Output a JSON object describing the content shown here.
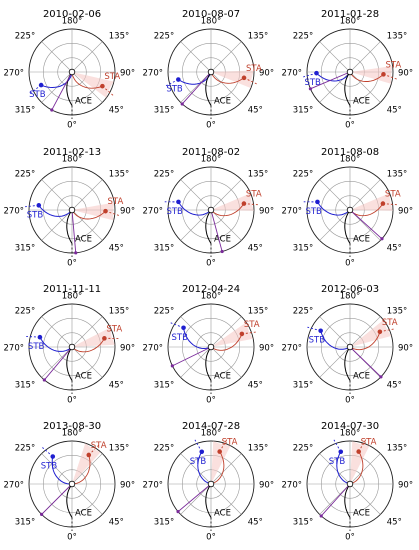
{
  "chart_data": {
    "type": "polar",
    "description_of_layout": "grid",
    "angle_labels": [
      "180°",
      "135°",
      "90°",
      "45°",
      "0°",
      "315°",
      "270°",
      "225°"
    ],
    "angle_values": [
      180,
      135,
      90,
      45,
      0,
      315,
      270,
      225
    ],
    "spacecraft_labels": [
      "STA",
      "STB",
      "ACE"
    ],
    "colors": {
      "STA": "#c0402c",
      "STB": "#1f1fd0",
      "ACE": "#000000",
      "event": "#7a2a9a",
      "grid": "#9a9a9a"
    },
    "panels": [
      {
        "date": "2010-02-06",
        "sta_deg": 65,
        "stb_deg": 293,
        "event_deg": 332,
        "ace_label": true,
        "label_pos": "right"
      },
      {
        "date": "2010-08-07",
        "sta_deg": 80,
        "stb_deg": 283,
        "event_deg": 318,
        "ace_label": true,
        "label_pos": "right"
      },
      {
        "date": "2011-01-28",
        "sta_deg": 86,
        "stb_deg": 272,
        "event_deg": 293,
        "ace_label": true,
        "label_pos": "right"
      },
      {
        "date": "2011-02-13",
        "sta_deg": 88,
        "stb_deg": 262,
        "event_deg": 5,
        "ace_label": true,
        "label_pos": "right"
      },
      {
        "date": "2011-08-02",
        "sta_deg": 101,
        "stb_deg": 256,
        "event_deg": 15,
        "ace_label": true,
        "label_pos": "right"
      },
      {
        "date": "2011-08-08",
        "sta_deg": 101,
        "stb_deg": 256,
        "event_deg": 48,
        "ace_label": true,
        "label_pos": "right"
      },
      {
        "date": "2011-11-11",
        "sta_deg": 105,
        "stb_deg": 253,
        "event_deg": 320,
        "ace_label": true,
        "label_pos": "right"
      },
      {
        "date": "2012-04-24",
        "sta_deg": 113,
        "stb_deg": 235,
        "event_deg": 296,
        "ace_label": true,
        "label_pos": "right"
      },
      {
        "date": "2012-06-03",
        "sta_deg": 117,
        "stb_deg": 241,
        "event_deg": 46,
        "ace_label": true,
        "label_pos": "right"
      },
      {
        "date": "2013-08-30",
        "sta_deg": 150,
        "stb_deg": 215,
        "event_deg": 315,
        "ace_label": true,
        "label_pos": "right"
      },
      {
        "date": "2014-07-28",
        "sta_deg": 165,
        "stb_deg": 196,
        "event_deg": 310,
        "ace_label": true,
        "label_pos": "right"
      },
      {
        "date": "2014-07-30",
        "sta_deg": 165,
        "stb_deg": 196,
        "event_deg": 318,
        "ace_label": true,
        "label_pos": "right"
      }
    ]
  }
}
